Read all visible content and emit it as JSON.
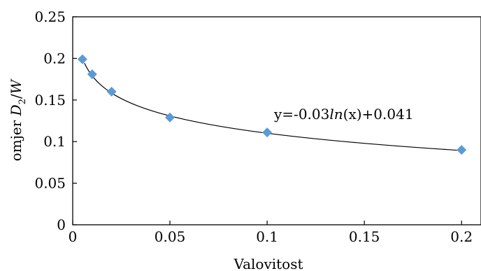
{
  "chart_data": {
    "type": "scatter",
    "xlabel": "Valovitost",
    "ylabel": {
      "prefix": "omjer ",
      "var": "D",
      "sub": "2",
      "slash": "/",
      "var2": "W"
    },
    "xlim": [
      0,
      0.21
    ],
    "ylim": [
      0,
      0.25
    ],
    "xticks": [
      0,
      0.05,
      0.1,
      0.15,
      0.2
    ],
    "xtick_labels": [
      "0",
      "0.05",
      "0.1",
      "0.15",
      "0.2"
    ],
    "yticks": [
      0,
      0.05,
      0.1,
      0.15,
      0.2,
      0.25
    ],
    "ytick_labels": [
      "0",
      "0.05",
      "0.1",
      "0.15",
      "0.2",
      "0.25"
    ],
    "grid": false,
    "series": [
      {
        "x": [
          0.005,
          0.01,
          0.02,
          0.05,
          0.1,
          0.2
        ],
        "y": [
          0.199,
          0.181,
          0.16,
          0.129,
          0.111,
          0.09
        ],
        "marker": "diamond",
        "color": "#5b9bd5"
      }
    ],
    "trendline": {
      "type": "logarithmic",
      "a": -0.03,
      "b": 0.041,
      "x_range": [
        0.006,
        0.2
      ],
      "color": "#000000"
    },
    "annotation": {
      "pre": "y=-0.03",
      "fn": "ln",
      "post": "(x)+0.041"
    }
  }
}
